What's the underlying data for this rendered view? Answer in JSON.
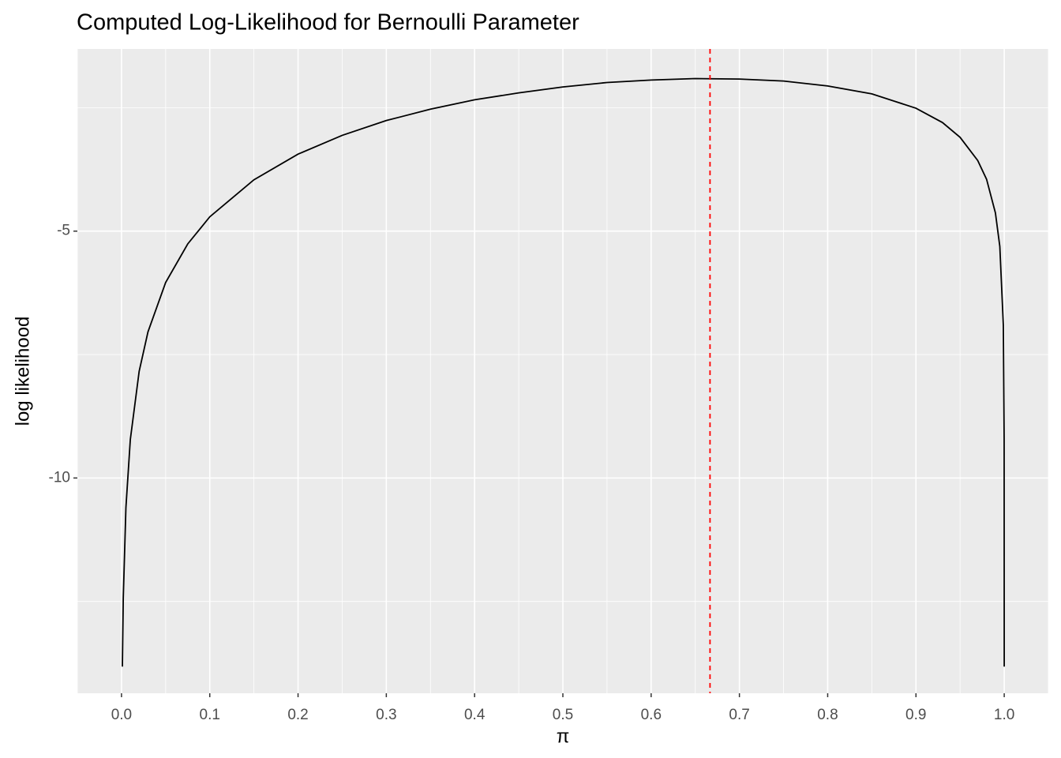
{
  "chart_data": {
    "type": "line",
    "title": "Computed Log-Likelihood for Bernoulli Parameter",
    "x_label": "π",
    "y_label": "log likelihood",
    "x": [
      0.001,
      0.002,
      0.005,
      0.01,
      0.02,
      0.03,
      0.05,
      0.075,
      0.1,
      0.15,
      0.2,
      0.25,
      0.3,
      0.35,
      0.4,
      0.45,
      0.5,
      0.55,
      0.6,
      0.65,
      0.7,
      0.75,
      0.8,
      0.85,
      0.9,
      0.93,
      0.95,
      0.97,
      0.98,
      0.99,
      0.995,
      0.999,
      0.9999,
      0.999999
    ],
    "series": [
      {
        "name": "log likelihood",
        "color": "#000000",
        "values": [
          -13.82,
          -12.43,
          -10.6,
          -9.22,
          -7.84,
          -7.04,
          -6.04,
          -5.26,
          -4.71,
          -3.96,
          -3.44,
          -3.06,
          -2.76,
          -2.53,
          -2.34,
          -2.2,
          -2.08,
          -1.99,
          -1.94,
          -1.91,
          -1.92,
          -1.96,
          -2.06,
          -2.22,
          -2.51,
          -2.8,
          -3.1,
          -3.57,
          -3.95,
          -4.63,
          -5.31,
          -6.91,
          -9.21,
          -13.82
        ]
      }
    ],
    "reference_line": {
      "x": 0.6667,
      "color": "#ff0000"
    },
    "xlim": [
      -0.05,
      1.05
    ],
    "xticks": [
      {
        "value": 0,
        "label": "0.0"
      },
      0.1,
      0.2,
      0.3,
      0.4,
      0.5,
      0.6,
      0.7,
      0.8,
      0.9,
      {
        "value": 1,
        "label": "1.0"
      }
    ],
    "ylim": [
      -14.36,
      -1.31
    ],
    "yticks": [
      -10,
      -5
    ],
    "grid": true
  }
}
